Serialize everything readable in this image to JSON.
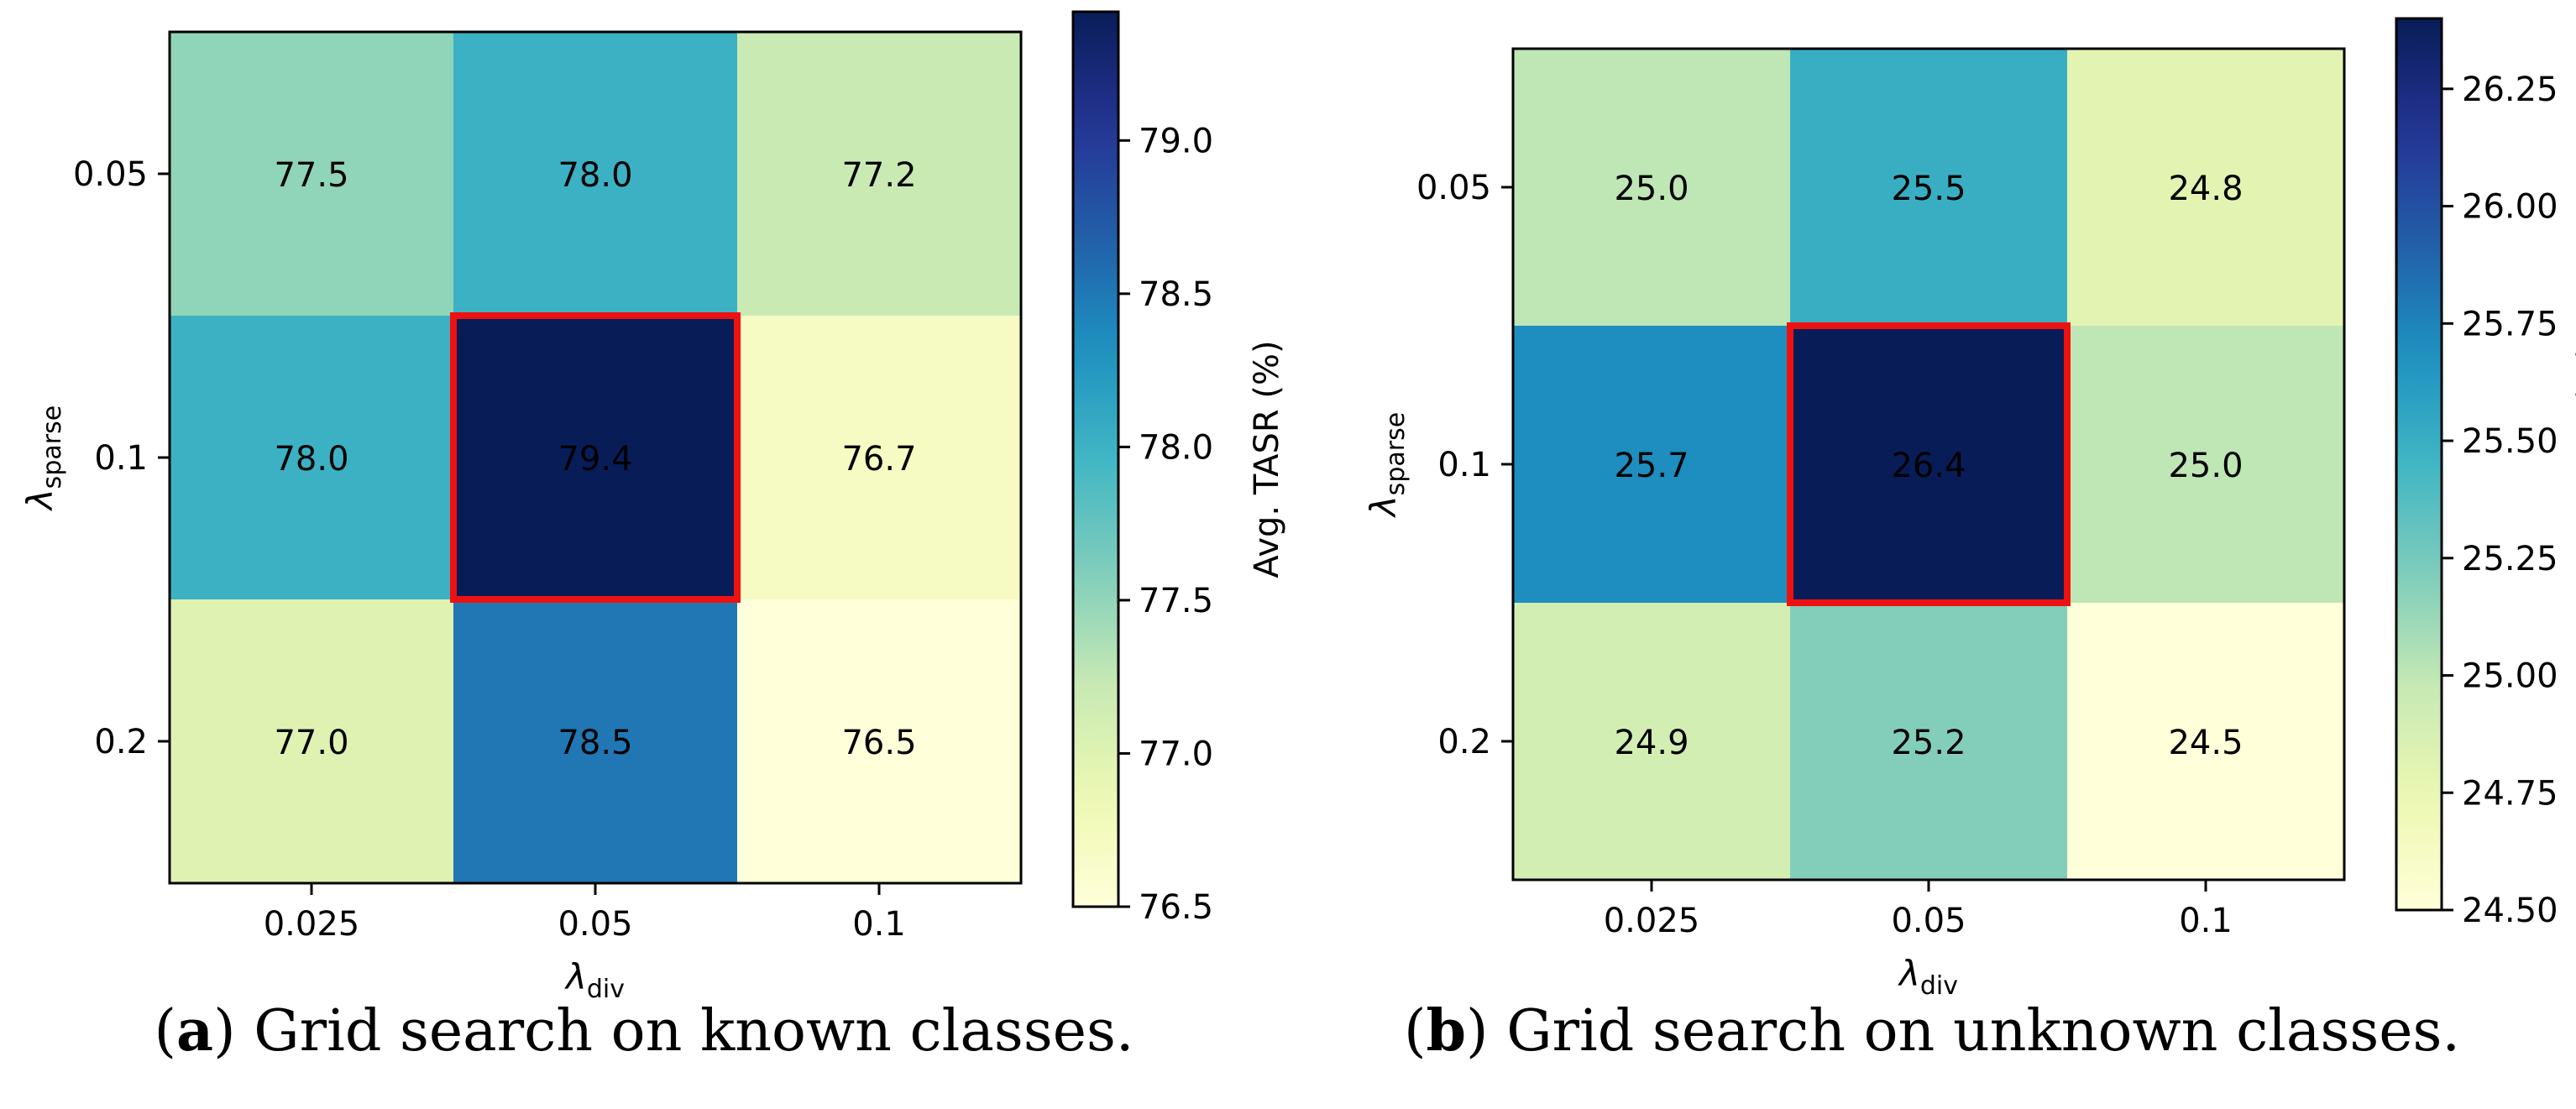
{
  "chart_data": [
    {
      "type": "heatmap",
      "x_categories": [
        "0.025",
        "0.05",
        "0.1"
      ],
      "y_categories": [
        "0.05",
        "0.1",
        "0.2"
      ],
      "values": [
        [
          77.5,
          78.0,
          77.2
        ],
        [
          78.0,
          79.4,
          76.7
        ],
        [
          77.0,
          78.5,
          76.5
        ]
      ],
      "cell_labels": [
        [
          "77.5",
          "78.0",
          "77.2"
        ],
        [
          "78.0",
          "79.4",
          "76.7"
        ],
        [
          "77.0",
          "78.5",
          "76.5"
        ]
      ],
      "xlabel_symbol": "λ",
      "xlabel_sub": "div",
      "ylabel_symbol": "λ",
      "ylabel_sub": "sparse",
      "colorbar_label": "Avg. TASR (%)",
      "colorbar_ticks": [
        "76.5",
        "77.0",
        "77.5",
        "78.0",
        "78.5",
        "79.0"
      ],
      "vmin": 76.5,
      "vmax": 79.4,
      "colormap": "YlGnBu",
      "highlight_cell": {
        "row": 1,
        "col": 1,
        "color": "#ee1111"
      },
      "caption_label": "a",
      "caption_text": "Grid search on known classes."
    },
    {
      "type": "heatmap",
      "x_categories": [
        "0.025",
        "0.05",
        "0.1"
      ],
      "y_categories": [
        "0.05",
        "0.1",
        "0.2"
      ],
      "values": [
        [
          25.0,
          25.5,
          24.8
        ],
        [
          25.7,
          26.4,
          25.0
        ],
        [
          24.9,
          25.2,
          24.5
        ]
      ],
      "cell_labels": [
        [
          "25.0",
          "25.5",
          "24.8"
        ],
        [
          "25.7",
          "26.4",
          "25.0"
        ],
        [
          "24.9",
          "25.2",
          "24.5"
        ]
      ],
      "xlabel_symbol": "λ",
      "xlabel_sub": "div",
      "ylabel_symbol": "λ",
      "ylabel_sub": "sparse",
      "colorbar_label": "Avg. TASR (%)",
      "colorbar_ticks": [
        "24.50",
        "24.75",
        "25.00",
        "25.25",
        "25.50",
        "25.75",
        "26.00",
        "26.25"
      ],
      "vmin": 24.5,
      "vmax": 26.4,
      "colormap": "YlGnBu",
      "highlight_cell": {
        "row": 1,
        "col": 1,
        "color": "#ee1111"
      },
      "caption_label": "b",
      "caption_text": "Grid search on unknown classes."
    }
  ]
}
